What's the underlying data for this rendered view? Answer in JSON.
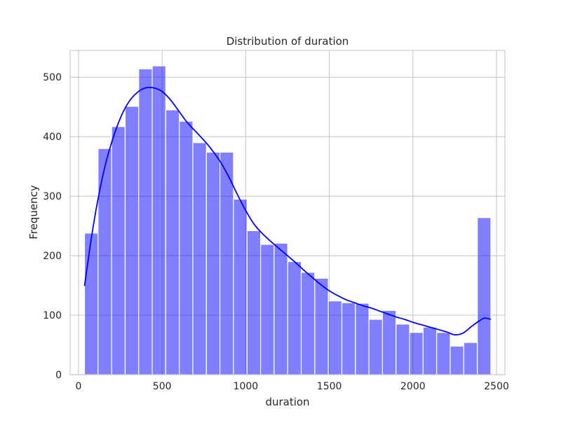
{
  "chart_data": {
    "type": "bar",
    "title": "Distribution of duration",
    "xlabel": "duration",
    "ylabel": "Frequency",
    "xlim": [
      -50,
      2550
    ],
    "ylim": [
      0,
      545
    ],
    "xticks": [
      0,
      500,
      1000,
      1500,
      2000,
      2500
    ],
    "yticks": [
      0,
      100,
      200,
      300,
      400,
      500
    ],
    "grid": true,
    "bar_color": "#0000ff",
    "bar_opacity": 0.5,
    "kde_color": "#0000ff",
    "bins": [
      {
        "x0": 36,
        "x1": 117,
        "value": 238
      },
      {
        "x0": 117,
        "x1": 198,
        "value": 380
      },
      {
        "x0": 198,
        "x1": 279,
        "value": 417
      },
      {
        "x0": 279,
        "x1": 360,
        "value": 451
      },
      {
        "x0": 360,
        "x1": 441,
        "value": 514
      },
      {
        "x0": 441,
        "x1": 522,
        "value": 519
      },
      {
        "x0": 522,
        "x1": 603,
        "value": 445
      },
      {
        "x0": 603,
        "x1": 684,
        "value": 426
      },
      {
        "x0": 684,
        "x1": 765,
        "value": 390
      },
      {
        "x0": 765,
        "x1": 846,
        "value": 374
      },
      {
        "x0": 846,
        "x1": 927,
        "value": 374
      },
      {
        "x0": 927,
        "x1": 1008,
        "value": 295
      },
      {
        "x0": 1008,
        "x1": 1089,
        "value": 242
      },
      {
        "x0": 1089,
        "x1": 1170,
        "value": 219
      },
      {
        "x0": 1170,
        "x1": 1251,
        "value": 221
      },
      {
        "x0": 1251,
        "x1": 1332,
        "value": 190
      },
      {
        "x0": 1332,
        "x1": 1413,
        "value": 172
      },
      {
        "x0": 1413,
        "x1": 1494,
        "value": 162
      },
      {
        "x0": 1494,
        "x1": 1575,
        "value": 124
      },
      {
        "x0": 1575,
        "x1": 1656,
        "value": 121
      },
      {
        "x0": 1656,
        "x1": 1737,
        "value": 120
      },
      {
        "x0": 1737,
        "x1": 1818,
        "value": 93
      },
      {
        "x0": 1818,
        "x1": 1899,
        "value": 108
      },
      {
        "x0": 1899,
        "x1": 1980,
        "value": 85
      },
      {
        "x0": 1980,
        "x1": 2061,
        "value": 71
      },
      {
        "x0": 2061,
        "x1": 2142,
        "value": 80
      },
      {
        "x0": 2142,
        "x1": 2223,
        "value": 71
      },
      {
        "x0": 2223,
        "x1": 2304,
        "value": 48
      },
      {
        "x0": 2304,
        "x1": 2385,
        "value": 54
      },
      {
        "x0": 2385,
        "x1": 2466,
        "value": 264
      }
    ],
    "kde": {
      "x": [
        36,
        80,
        120,
        160,
        200,
        250,
        300,
        350,
        400,
        450,
        500,
        550,
        600,
        650,
        700,
        750,
        800,
        850,
        900,
        950,
        1000,
        1050,
        1100,
        1150,
        1200,
        1250,
        1300,
        1350,
        1400,
        1450,
        1500,
        1550,
        1600,
        1650,
        1700,
        1750,
        1800,
        1850,
        1900,
        1950,
        2000,
        2050,
        2100,
        2150,
        2200,
        2250,
        2300,
        2350,
        2400,
        2430,
        2466
      ],
      "y": [
        149,
        235,
        300,
        352,
        392,
        431,
        458,
        474,
        482,
        482,
        476,
        462,
        443,
        424,
        409,
        394,
        377,
        357,
        332,
        303,
        276,
        253,
        237,
        224,
        212,
        200,
        188,
        175,
        163,
        151,
        141,
        133,
        126,
        121,
        116,
        112,
        107,
        102,
        97,
        93,
        88,
        84,
        80,
        76,
        72,
        67,
        70,
        81,
        91,
        95,
        93
      ]
    }
  }
}
